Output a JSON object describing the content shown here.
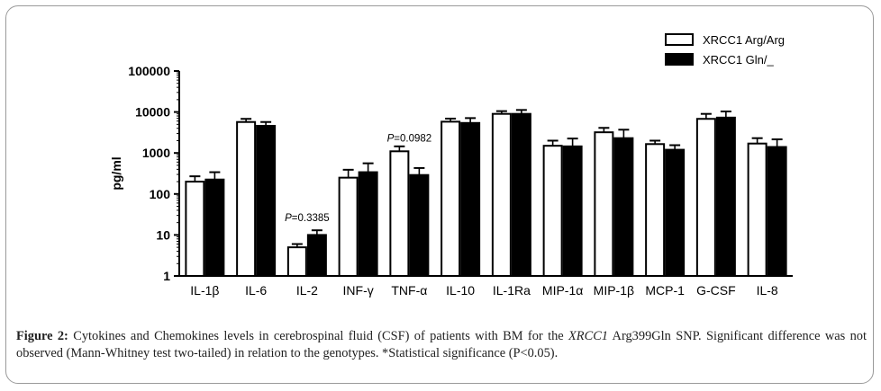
{
  "chart_data": {
    "type": "bar",
    "scale": "log",
    "ylabel": "pg/ml",
    "ylim": [
      1,
      100000
    ],
    "yticks": [
      "1",
      "10",
      "100",
      "1000",
      "10000",
      "100000"
    ],
    "categories": [
      "IL-1β",
      "IL-6",
      "IL-2",
      "INF-γ",
      "TNF-α",
      "IL-10",
      "IL-1Ra",
      "MIP-1α",
      "MIP-1β",
      "MCP-1",
      "G-CSF",
      "IL-8"
    ],
    "series": [
      {
        "name": "XRCC1 Arg/Arg",
        "fill": "#ffffff",
        "values": [
          200,
          5700,
          5,
          250,
          1100,
          5800,
          9000,
          1500,
          3200,
          1650,
          6800,
          1700
        ],
        "err_upper": [
          270,
          6800,
          6,
          390,
          1450,
          6900,
          10500,
          2000,
          4100,
          2000,
          9000,
          2300
        ]
      },
      {
        "name": "XRCC1 Gln/_",
        "fill": "#000000",
        "values": [
          225,
          4600,
          10,
          340,
          290,
          5400,
          9000,
          1450,
          2300,
          1200,
          7300,
          1400
        ],
        "err_upper": [
          340,
          5700,
          13,
          560,
          430,
          7100,
          11200,
          2250,
          3700,
          1550,
          10300,
          2150
        ]
      }
    ],
    "annotations": [
      {
        "category": "IL-2",
        "label_p": "P",
        "label_rest": "=0.3385",
        "y": 22
      },
      {
        "category": "TNF-α",
        "label_p": "P",
        "label_rest": "=0.0982",
        "y": 1900
      }
    ],
    "legend": "top-right",
    "grid": false
  },
  "caption": {
    "label": "Figure 2:",
    "text1": " Cytokines and Chemokines levels in cerebrospinal fluid (CSF) of patients with BM for the ",
    "gene": "XRCC1",
    "text2": " Arg399Gln SNP. Significant difference was not observed (Mann-Whitney test two-tailed) in relation to the genotypes. *Statistical significance (P<0.05)."
  }
}
